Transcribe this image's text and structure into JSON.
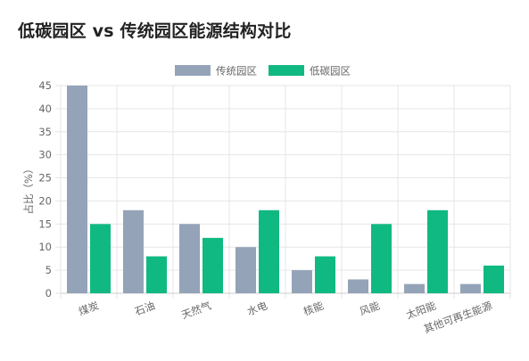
{
  "page": {
    "title": "低碳园区 vs 传统园区能源结构对比"
  },
  "colors": {
    "traditional": "#94a3b8",
    "low_carbon": "#10b981",
    "grid": "#e6e6e6",
    "axis": "#cccccc"
  },
  "chart_data": {
    "type": "bar",
    "title": "低碳园区 vs 传统园区能源结构对比",
    "xlabel": "",
    "ylabel": "占比（%）",
    "ylim": [
      0,
      45
    ],
    "yticks": [
      0,
      5,
      10,
      15,
      20,
      25,
      30,
      35,
      40,
      45
    ],
    "grid": true,
    "legend_position": "top-center",
    "categories": [
      "煤炭",
      "石油",
      "天然气",
      "水电",
      "核能",
      "风能",
      "太阳能",
      "其他可再生能源"
    ],
    "series": [
      {
        "name": "传统园区",
        "values": [
          45,
          18,
          15,
          10,
          5,
          3,
          2,
          2
        ]
      },
      {
        "name": "低碳园区",
        "values": [
          15,
          8,
          12,
          18,
          8,
          15,
          18,
          6
        ]
      }
    ]
  }
}
